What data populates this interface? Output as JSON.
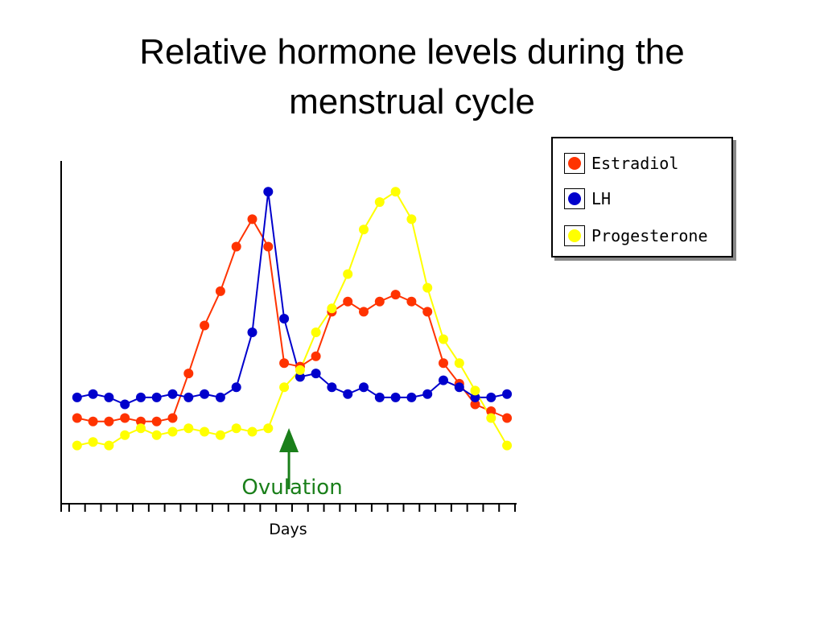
{
  "slide": {
    "title_line1": "Relative hormone levels during the",
    "title_line2": "menstrual cycle"
  },
  "chart_data": {
    "type": "line",
    "title": "",
    "xlabel": "Days",
    "ylabel": "",
    "x": [
      1,
      2,
      3,
      4,
      5,
      6,
      7,
      8,
      9,
      10,
      11,
      12,
      13,
      14,
      15,
      16,
      17,
      18,
      19,
      20,
      21,
      22,
      23,
      24,
      25,
      26,
      27,
      28
    ],
    "xlim": [
      0,
      28.6
    ],
    "ylim": [
      0,
      100
    ],
    "grid": false,
    "legend_position": "right",
    "annotation": {
      "label": "Ovulation",
      "day": 14,
      "color": "#1a7f1a"
    },
    "series": [
      {
        "name": "Estradiol",
        "color": "#ff3300",
        "values": [
          25,
          24,
          24,
          25,
          24,
          24,
          25,
          38,
          52,
          62,
          75,
          83,
          75,
          41,
          40,
          43,
          56,
          59,
          56,
          59,
          61,
          59,
          56,
          41,
          35,
          29,
          27,
          25
        ]
      },
      {
        "name": "LH",
        "color": "#0000cc",
        "values": [
          31,
          32,
          31,
          29,
          31,
          31,
          32,
          31,
          32,
          31,
          34,
          50,
          91,
          54,
          37,
          38,
          34,
          32,
          34,
          31,
          31,
          31,
          32,
          36,
          34,
          31,
          31,
          32
        ]
      },
      {
        "name": "Progesterone",
        "color": "#ffff00",
        "values": [
          17,
          18,
          17,
          20,
          22,
          20,
          21,
          22,
          21,
          20,
          22,
          21,
          22,
          34,
          39,
          50,
          57,
          67,
          80,
          88,
          91,
          83,
          63,
          48,
          41,
          33,
          25,
          17
        ]
      }
    ]
  }
}
